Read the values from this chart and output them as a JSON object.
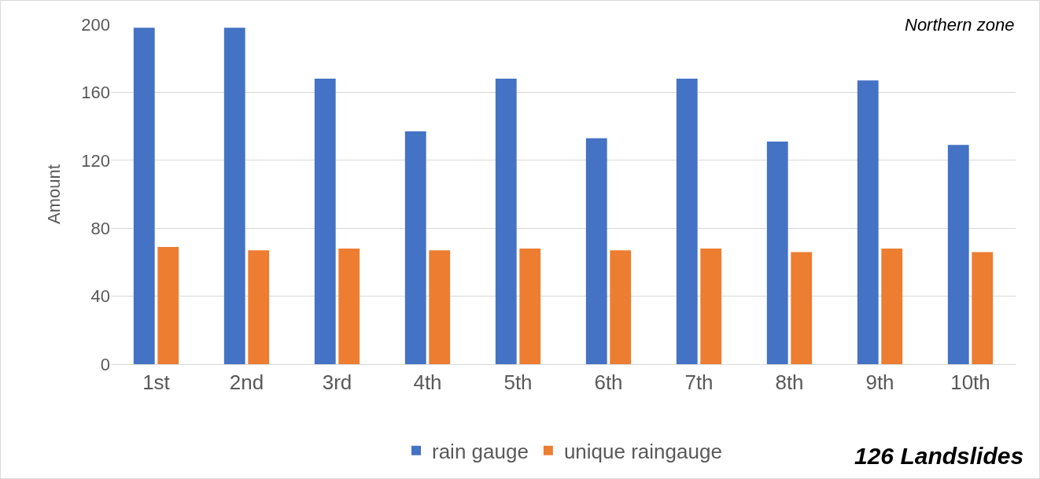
{
  "chart_data": {
    "type": "bar",
    "ylabel": "Amount",
    "categories": [
      "1st",
      "2nd",
      "3rd",
      "4th",
      "5th",
      "6th",
      "7th",
      "8th",
      "9th",
      "10th"
    ],
    "series": [
      {
        "name": "rain gauge",
        "color": "#4472c4",
        "values": [
          198,
          198,
          168,
          137,
          168,
          133,
          168,
          131,
          167,
          129
        ]
      },
      {
        "name": "unique raingauge",
        "color": "#ed7d31",
        "values": [
          69,
          67,
          68,
          67,
          68,
          67,
          68,
          66,
          68,
          66
        ]
      }
    ],
    "ylim": [
      0,
      200
    ],
    "yticks": [
      0,
      40,
      80,
      120,
      160,
      200
    ],
    "grid": "y",
    "legend": "bottom",
    "annotations": [
      "Northern zone",
      "126 Landslides"
    ]
  }
}
